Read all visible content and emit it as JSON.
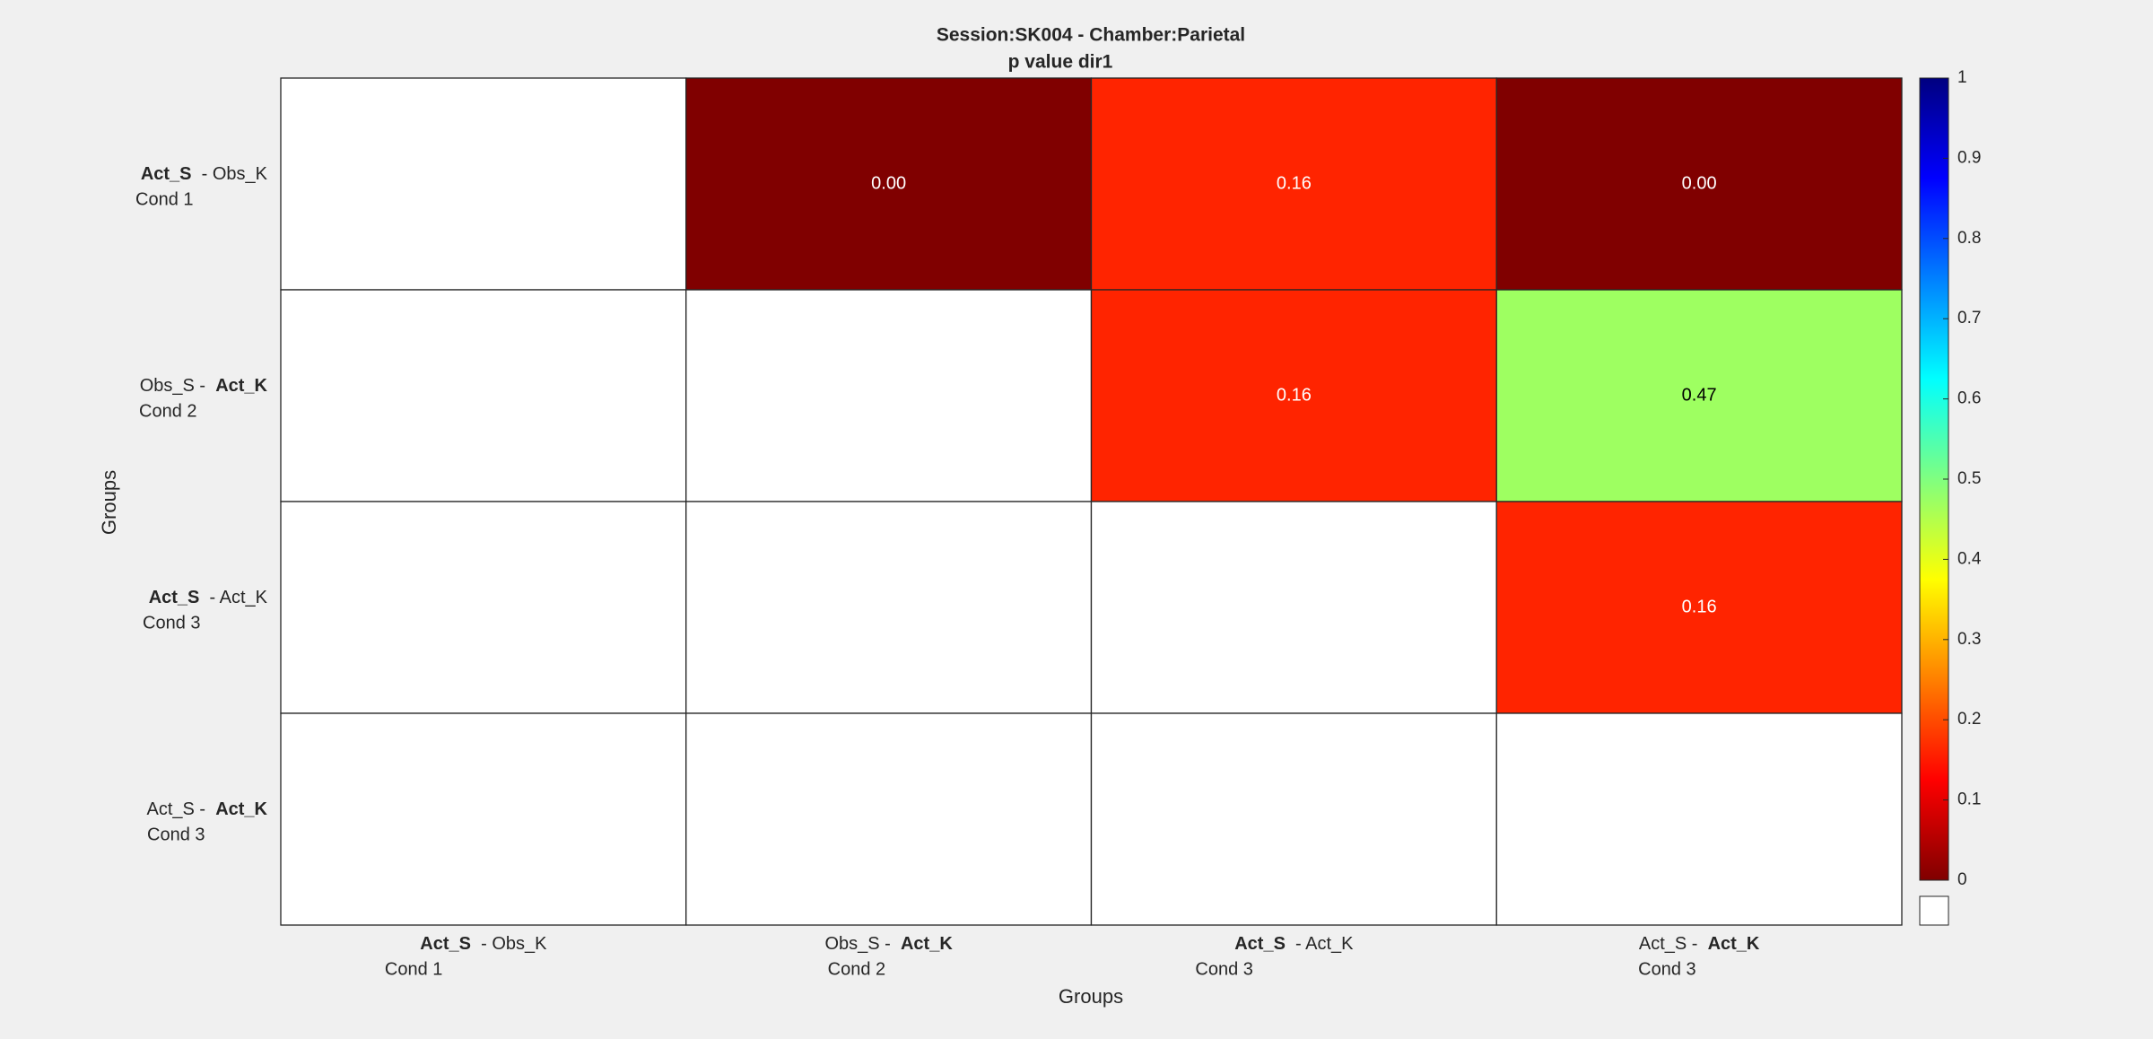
{
  "figure": {
    "background": "#f0f0f0",
    "grid_line_color": "#262626",
    "empty_cell_color": "#ffffff"
  },
  "chart_data": {
    "type": "heatmap",
    "title": "Session:SK004 - Chamber:Parietal",
    "subtitle": "p value dir1",
    "xlabel": "Groups",
    "ylabel": "Groups",
    "categories": [
      {
        "bold_part": "Act_S",
        "rest": " - Obs_K",
        "bold_first": true,
        "cond": "Cond 1"
      },
      {
        "plain_part": "Obs_S - ",
        "bold_part": "Act_K",
        "bold_first": false,
        "cond": "Cond 2"
      },
      {
        "bold_part": "Act_S",
        "rest": " - Act_K",
        "bold_first": true,
        "cond": "Cond 3"
      },
      {
        "plain_part": "Act_S - ",
        "bold_part": "Act_K",
        "bold_first": false,
        "cond": "Cond 3"
      }
    ],
    "matrix": [
      [
        null,
        0.0,
        0.16,
        0.0
      ],
      [
        null,
        null,
        0.16,
        0.47
      ],
      [
        null,
        null,
        null,
        0.16
      ],
      [
        null,
        null,
        null,
        null
      ]
    ],
    "cell_labels": [
      [
        null,
        "0.00",
        "0.16",
        "0.00"
      ],
      [
        null,
        null,
        "0.16",
        "0.47"
      ],
      [
        null,
        null,
        null,
        "0.16"
      ],
      [
        null,
        null,
        null,
        null
      ]
    ],
    "colormap": "jet (reversed: 0 = dark red, 1 = dark blue)",
    "colorbar": {
      "range": [
        0,
        1
      ],
      "ticks": [
        "0",
        "0.1",
        "0.2",
        "0.3",
        "0.4",
        "0.5",
        "0.6",
        "0.7",
        "0.8",
        "0.9",
        "1"
      ],
      "nan_swatch_color": "#ffffff"
    }
  }
}
